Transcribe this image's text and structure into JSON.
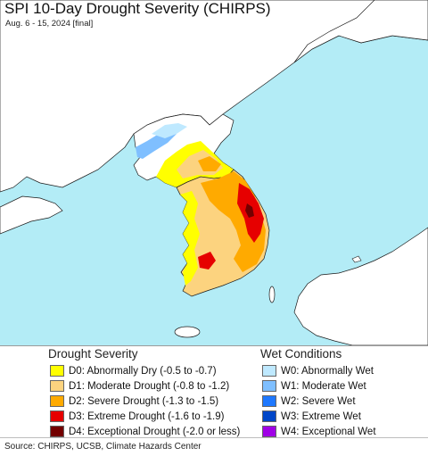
{
  "title": "SPI 10-Day Drought Severity (CHIRPS)",
  "subtitle": "Aug. 6 - 15, 2024 [final]",
  "colors": {
    "ocean": "#b3ecf6",
    "land_nodata": "#ffffff",
    "border": "#1a1a1a"
  },
  "legend": {
    "drought_heading": "Drought Severity",
    "wet_heading": "Wet Conditions",
    "drought": [
      {
        "label": "D0: Abnormally Dry (-0.5 to -0.7)",
        "color": "#ffff00"
      },
      {
        "label": "D1: Moderate Drought (-0.8 to -1.2)",
        "color": "#fcd37f"
      },
      {
        "label": "D2: Severe Drought (-1.3 to -1.5)",
        "color": "#ffaa00"
      },
      {
        "label": "D3: Extreme Drought (-1.6 to -1.9)",
        "color": "#e60000"
      },
      {
        "label": "D4: Exceptional Drought (-2.0 or less)",
        "color": "#730000"
      }
    ],
    "wet": [
      {
        "label": "W0: Abnormally Wet",
        "color": "#bfe9ff"
      },
      {
        "label": "W1: Moderate Wet",
        "color": "#7fbfff"
      },
      {
        "label": "W2: Severe Wet",
        "color": "#1e78ff"
      },
      {
        "label": "W3: Extreme Wet",
        "color": "#0046c8"
      },
      {
        "label": "W4: Exceptional Wet",
        "color": "#a000e6"
      }
    ]
  },
  "source": "Source: CHIRPS, UCSB, Climate Hazards Center"
}
